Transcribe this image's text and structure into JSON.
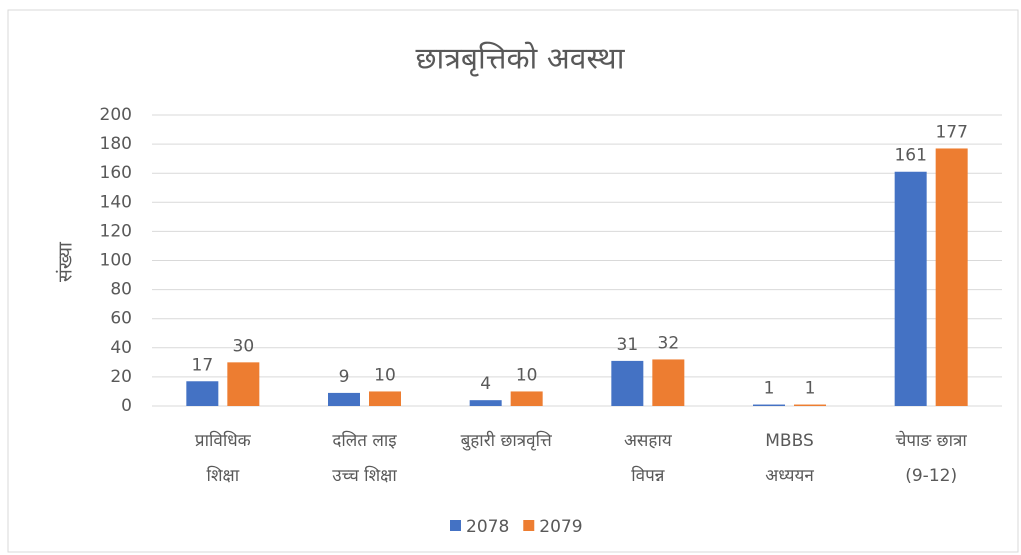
{
  "chart_data": {
    "type": "bar",
    "title": "छात्रबृत्तिको अवस्था",
    "y_label": "संख्या",
    "categories": [
      [
        "प्राविधिक",
        "शिक्षा"
      ],
      [
        "दलित लाइ",
        "उच्च शिक्षा"
      ],
      [
        "बुहारी छात्रवृत्ति"
      ],
      [
        "असहाय",
        "विपन्न"
      ],
      [
        "MBBS",
        "अध्ययन"
      ],
      [
        "चेपाङ छात्रा",
        "(9-12)"
      ]
    ],
    "series": [
      {
        "name": "2078",
        "color": "#4472c4",
        "values": [
          17,
          9,
          4,
          31,
          1,
          161
        ]
      },
      {
        "name": "2079",
        "color": "#ed7d31",
        "values": [
          30,
          10,
          10,
          32,
          1,
          177
        ]
      }
    ],
    "ylim": [
      0,
      200
    ],
    "yticks": [
      0,
      20,
      40,
      60,
      80,
      100,
      120,
      140,
      160,
      180,
      200
    ],
    "grid": true,
    "legend": "bottom"
  }
}
